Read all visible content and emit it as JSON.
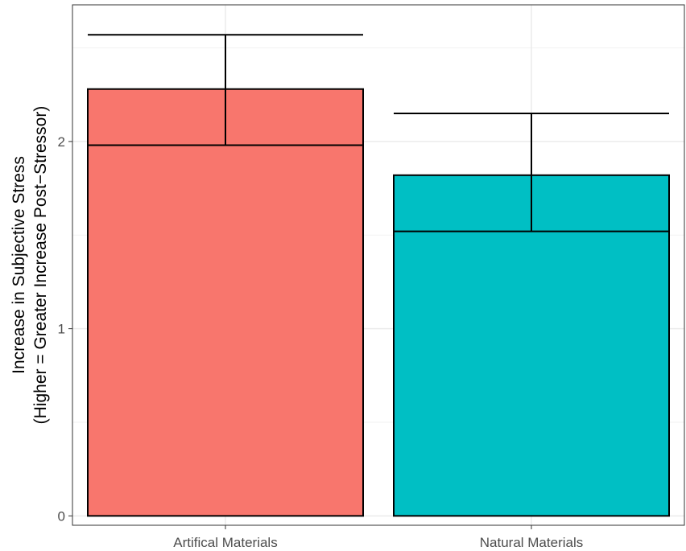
{
  "chart_data": {
    "type": "bar",
    "title": "",
    "xlabel": "",
    "ylabel_lines": [
      "Increase in Subjective Stress",
      "(Higher = Greater Increase Post−Stressor)"
    ],
    "categories": [
      "Artifical Materials",
      "Natural Materials"
    ],
    "values": [
      2.28,
      1.82
    ],
    "error_bars": [
      {
        "lower": 1.98,
        "upper": 2.57
      },
      {
        "lower": 1.52,
        "upper": 2.15
      }
    ],
    "colors": [
      "#F8766D",
      "#00BFC4"
    ],
    "ylim": [
      -0.05,
      2.73
    ],
    "yticks": [
      0,
      1,
      2
    ],
    "ytick_labels": [
      "0",
      "1",
      "2"
    ],
    "grid": true,
    "legend": "none"
  }
}
